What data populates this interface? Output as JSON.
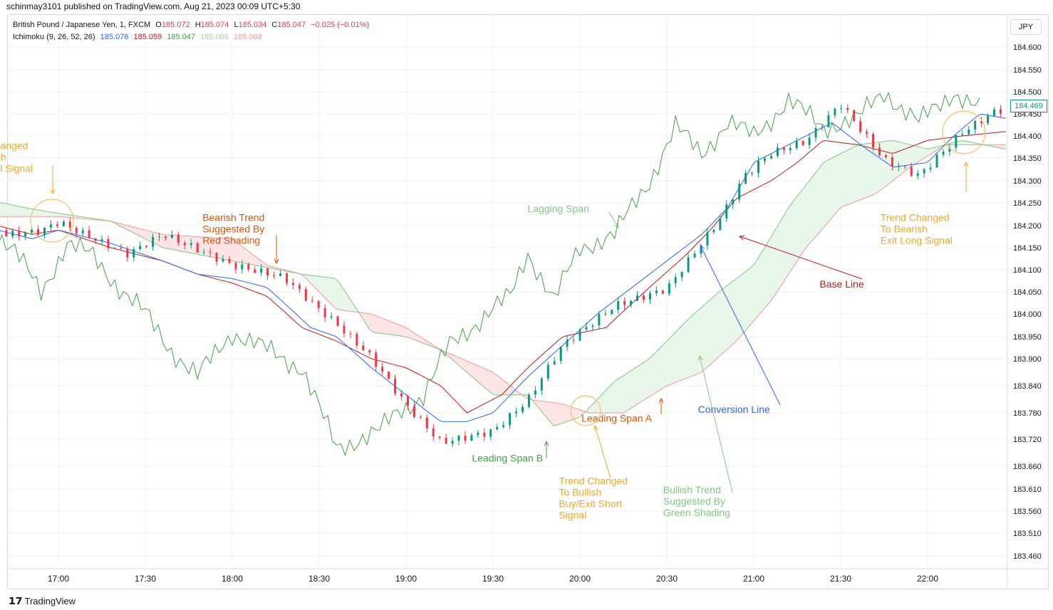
{
  "header": {
    "published": "schinmay3101 published on TradingView.com, Aug 21, 2023 00:09 UTC+5:30"
  },
  "legend": {
    "symbol": "British Pound / Japanese Yen, 1, FXCM",
    "o_label": "O",
    "o": "185.072",
    "h_label": "H",
    "h": "185.074",
    "l_label": "L",
    "l": "185.034",
    "c_label": "C",
    "c": "185.047",
    "change": "−0.025 (−0.01%)",
    "indicator": "Ichimoku (9, 26, 52, 26)",
    "vals": [
      "185.076",
      "185.059",
      "185.047",
      "185.068",
      "185.068"
    ]
  },
  "currency": "JPY",
  "last_price": "184.469",
  "footer": {
    "brand": "TradingView"
  },
  "colors": {
    "up": "#089981",
    "down": "#f23645",
    "conversion": "#2962ff",
    "base": "#b71c1c",
    "lagging": "#43a047",
    "span_a": "#81c784",
    "span_b": "#ef9a9a",
    "cloud_green": "#e8f5e9",
    "cloud_red": "#fde4e4",
    "annotation": "#f5a623",
    "annotation_dark": "#e65100"
  },
  "chart_data": {
    "type": "candlestick",
    "title": "British Pound / Japanese Yen, 1, FXCM",
    "x_ticks": [
      "17:00",
      "17:30",
      "18:00",
      "18:30",
      "19:00",
      "19:30",
      "20:00",
      "20:30",
      "21:00",
      "21:30",
      "22:00"
    ],
    "y_ticks": [
      184.6,
      184.55,
      184.5,
      184.45,
      184.4,
      184.35,
      184.3,
      184.25,
      184.2,
      184.15,
      184.1,
      184.05,
      184.0,
      183.95,
      183.9,
      183.84,
      183.78,
      183.72,
      183.66,
      183.61,
      183.56,
      183.51,
      183.46
    ],
    "y_tick_labels": [
      "184.600",
      "184.550",
      "184.500",
      "184.450",
      "184.400",
      "184.350",
      "184.300",
      "184.250",
      "184.200",
      "184.150",
      "184.100",
      "184.050",
      "184.000",
      "183.950",
      "183.900",
      "183.840",
      "183.780",
      "183.720",
      "183.660",
      "183.610",
      "183.560",
      "183.510",
      "183.460"
    ],
    "close_path": [
      [
        16.7,
        184.19
      ],
      [
        16.9,
        184.2
      ],
      [
        17.0,
        184.22
      ],
      [
        17.2,
        184.18
      ],
      [
        17.4,
        184.14
      ],
      [
        17.6,
        184.18
      ],
      [
        17.8,
        184.14
      ],
      [
        18.0,
        184.1
      ],
      [
        18.3,
        184.07
      ],
      [
        18.5,
        184.0
      ],
      [
        18.6,
        183.97
      ],
      [
        18.8,
        183.9
      ],
      [
        19.0,
        183.8
      ],
      [
        19.2,
        183.72
      ],
      [
        19.5,
        183.75
      ],
      [
        19.7,
        183.82
      ],
      [
        19.9,
        183.94
      ],
      [
        20.2,
        184.02
      ],
      [
        20.5,
        184.05
      ],
      [
        20.8,
        184.2
      ],
      [
        20.95,
        184.3
      ],
      [
        21.1,
        184.35
      ],
      [
        21.3,
        184.38
      ],
      [
        21.5,
        184.47
      ],
      [
        21.75,
        184.35
      ],
      [
        21.95,
        184.32
      ],
      [
        22.2,
        184.42
      ],
      [
        22.4,
        184.47
      ]
    ],
    "base_path": [
      [
        16.65,
        184.2
      ],
      [
        16.85,
        184.18
      ],
      [
        17.0,
        184.19
      ],
      [
        17.3,
        184.15
      ],
      [
        17.6,
        184.12
      ],
      [
        17.8,
        184.09
      ],
      [
        18.0,
        184.07
      ],
      [
        18.2,
        184.04
      ],
      [
        18.4,
        183.97
      ],
      [
        18.6,
        183.94
      ],
      [
        18.8,
        183.9
      ],
      [
        19.0,
        183.88
      ],
      [
        19.2,
        183.84
      ],
      [
        19.35,
        183.78
      ],
      [
        19.55,
        183.82
      ],
      [
        19.7,
        183.88
      ],
      [
        19.9,
        183.95
      ],
      [
        20.15,
        183.97
      ],
      [
        20.4,
        184.06
      ],
      [
        20.6,
        184.13
      ],
      [
        20.75,
        184.19
      ],
      [
        20.9,
        184.26
      ],
      [
        21.1,
        184.3
      ],
      [
        21.25,
        184.34
      ],
      [
        21.4,
        184.39
      ],
      [
        21.6,
        184.38
      ],
      [
        21.8,
        184.36
      ],
      [
        22.0,
        184.39
      ],
      [
        22.2,
        184.4
      ],
      [
        22.45,
        184.41
      ]
    ],
    "conversion_path": [
      [
        16.65,
        184.19
      ],
      [
        16.85,
        184.17
      ],
      [
        17.0,
        184.19
      ],
      [
        17.3,
        184.16
      ],
      [
        17.6,
        184.12
      ],
      [
        17.8,
        184.09
      ],
      [
        18.0,
        184.08
      ],
      [
        18.2,
        184.06
      ],
      [
        18.45,
        183.97
      ],
      [
        18.6,
        183.95
      ],
      [
        18.8,
        183.88
      ],
      [
        19.0,
        183.82
      ],
      [
        19.2,
        183.76
      ],
      [
        19.35,
        183.76
      ],
      [
        19.5,
        183.78
      ],
      [
        19.7,
        183.86
      ],
      [
        19.9,
        183.93
      ],
      [
        20.1,
        184.0
      ],
      [
        20.3,
        184.06
      ],
      [
        20.5,
        184.12
      ],
      [
        20.7,
        184.18
      ],
      [
        20.85,
        184.24
      ],
      [
        21.0,
        184.34
      ],
      [
        21.2,
        184.38
      ],
      [
        21.45,
        184.43
      ],
      [
        21.65,
        184.37
      ],
      [
        21.8,
        184.33
      ],
      [
        22.0,
        184.34
      ],
      [
        22.15,
        184.4
      ],
      [
        22.3,
        184.45
      ],
      [
        22.45,
        184.44
      ]
    ],
    "lagging_path": [
      [
        16.6,
        184.2
      ],
      [
        16.75,
        184.14
      ],
      [
        16.9,
        184.05
      ],
      [
        17.05,
        184.16
      ],
      [
        17.2,
        184.13
      ],
      [
        17.35,
        184.06
      ],
      [
        17.5,
        184.0
      ],
      [
        17.65,
        183.92
      ],
      [
        17.8,
        183.86
      ],
      [
        18.0,
        183.96
      ],
      [
        18.2,
        183.92
      ],
      [
        18.4,
        183.88
      ],
      [
        18.6,
        183.7
      ],
      [
        18.85,
        183.74
      ],
      [
        18.95,
        183.78
      ],
      [
        19.1,
        183.82
      ],
      [
        19.25,
        183.93
      ],
      [
        19.4,
        183.98
      ],
      [
        19.6,
        184.04
      ],
      [
        19.7,
        184.14
      ],
      [
        19.85,
        184.03
      ],
      [
        20.0,
        184.15
      ],
      [
        20.2,
        184.18
      ],
      [
        20.4,
        184.3
      ],
      [
        20.55,
        184.42
      ],
      [
        20.7,
        184.36
      ],
      [
        20.85,
        184.43
      ],
      [
        21.0,
        184.4
      ],
      [
        21.2,
        184.48
      ],
      [
        21.4,
        184.42
      ],
      [
        21.6,
        184.44
      ],
      [
        21.75,
        184.5
      ],
      [
        21.95,
        184.43
      ],
      [
        22.15,
        184.5
      ],
      [
        22.3,
        184.46
      ]
    ],
    "span_a_path": [
      [
        16.55,
        184.26
      ],
      [
        16.8,
        184.24
      ],
      [
        16.95,
        184.23
      ],
      [
        17.3,
        184.21
      ],
      [
        17.6,
        184.15
      ],
      [
        18.0,
        184.12
      ],
      [
        18.4,
        184.09
      ],
      [
        18.6,
        184.08
      ],
      [
        18.8,
        183.96
      ],
      [
        19.0,
        183.95
      ],
      [
        19.2,
        183.92
      ],
      [
        19.5,
        183.82
      ],
      [
        19.7,
        183.82
      ],
      [
        19.85,
        183.75
      ],
      [
        20.0,
        183.77
      ],
      [
        20.2,
        183.85
      ],
      [
        20.4,
        183.9
      ],
      [
        20.6,
        183.98
      ],
      [
        20.8,
        184.05
      ],
      [
        21.0,
        184.11
      ],
      [
        21.2,
        184.24
      ],
      [
        21.4,
        184.34
      ],
      [
        21.6,
        184.38
      ],
      [
        21.8,
        184.39
      ],
      [
        22.0,
        184.37
      ],
      [
        22.2,
        184.39
      ],
      [
        22.45,
        184.37
      ]
    ],
    "span_b_path": [
      [
        16.55,
        184.22
      ],
      [
        16.8,
        184.22
      ],
      [
        17.0,
        184.22
      ],
      [
        17.3,
        184.21
      ],
      [
        17.6,
        184.18
      ],
      [
        18.0,
        184.17
      ],
      [
        18.2,
        184.11
      ],
      [
        18.4,
        184.09
      ],
      [
        18.6,
        184.01
      ],
      [
        18.8,
        184.0
      ],
      [
        19.0,
        183.97
      ],
      [
        19.2,
        183.92
      ],
      [
        19.5,
        183.87
      ],
      [
        19.7,
        183.81
      ],
      [
        19.9,
        183.8
      ],
      [
        20.05,
        183.78
      ],
      [
        20.25,
        183.78
      ],
      [
        20.5,
        183.84
      ],
      [
        20.7,
        183.87
      ],
      [
        20.9,
        183.94
      ],
      [
        21.1,
        184.03
      ],
      [
        21.3,
        184.15
      ],
      [
        21.5,
        184.24
      ],
      [
        21.7,
        184.27
      ],
      [
        21.9,
        184.33
      ],
      [
        22.1,
        184.38
      ],
      [
        22.45,
        184.38
      ]
    ],
    "annotations": [
      {
        "text": [
          "Trend Changed",
          "To Bearish",
          "Short Sell Signal"
        ],
        "at": [
          16.65,
          184.37
        ]
      },
      {
        "text": [
          "Bearish Trend",
          "Suggested By",
          "Red Shading"
        ],
        "at": [
          18.05,
          184.21
        ]
      },
      {
        "text": [
          "Lagging Span"
        ],
        "at": [
          19.92,
          184.23
        ]
      },
      {
        "text": [
          "Trend Changed",
          "To Bearish",
          "Exit Long Signal"
        ],
        "at": [
          21.95,
          184.21
        ]
      },
      {
        "text": [
          "Base Line"
        ],
        "at": [
          21.6,
          184.06
        ]
      },
      {
        "text": [
          "Conversion Line"
        ],
        "at": [
          20.9,
          183.78
        ]
      },
      {
        "text": [
          "Leading Span A"
        ],
        "at": [
          20.23,
          183.76
        ]
      },
      {
        "text": [
          "Leading Span B"
        ],
        "at": [
          19.6,
          183.67
        ]
      },
      {
        "text": [
          "Trend Changed",
          "To Bullish",
          "Buy/Exit Short",
          "Signal"
        ],
        "at": [
          20.1,
          183.62
        ]
      },
      {
        "text": [
          "Bullish Trend",
          "Suggested By",
          "Green Shading"
        ],
        "at": [
          20.7,
          183.6
        ]
      }
    ]
  }
}
